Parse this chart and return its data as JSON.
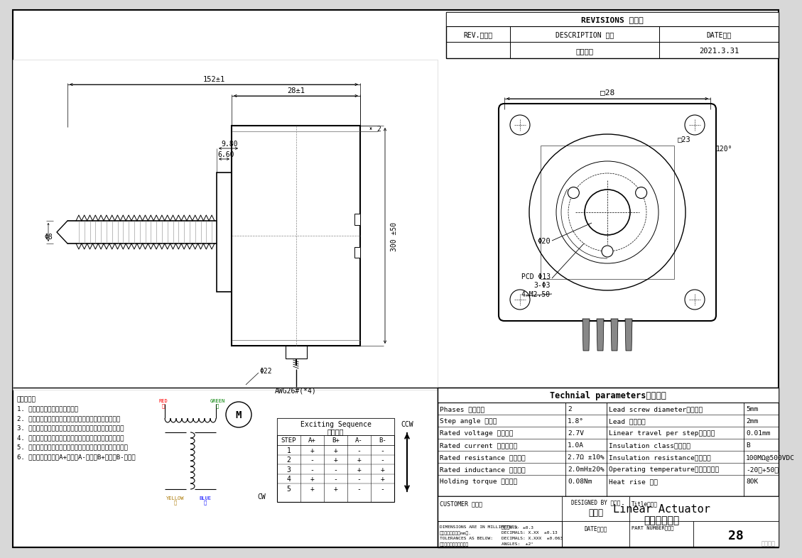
{
  "bg_color": "#d8d8d8",
  "title_box": {
    "revisions": "REVISIONS 修订栏",
    "rev_col": "REV.版本号",
    "desc_col": "DESCRIPTION 描述",
    "date_col": "DATE日期",
    "row1_desc": "首次发布",
    "row1_date": "2021.3.31"
  },
  "tech_params": {
    "title": "Technial parameters技术参数",
    "rows": [
      [
        "Phases 电机相数",
        "2",
        "Lead screw diameter丝杆直径",
        "5mm"
      ],
      [
        "Step angle 步距角",
        "1.8°",
        "Lead 螺纹导程",
        "2mm"
      ],
      [
        "Rated voltage 额定电压",
        "2.7V",
        "Linear travel per step整步步长",
        "0.01mm"
      ],
      [
        "Rated current 额定相电流",
        "1.0A",
        "Insulation class绝缘等级",
        "B"
      ],
      [
        "Rated resistance 额定电阻",
        "2.7Ω ±10%",
        "Insulation resistance绝缘电阻",
        "100MΩ@500VDC"
      ],
      [
        "Rated inductance 额定电感",
        "2.0mH±20%",
        "Operating temperature工作环境温度",
        "-20℃+50℃"
      ],
      [
        "Holding torque 保持力矩",
        "0.08Nm",
        "Heat rise 温升",
        "80K"
      ]
    ]
  },
  "notes": [
    "注意事项：",
    "1. 电机螺杆不得承受径向负载。",
    "2. 电机螺杆不能夹紧或者受到硬物挤压，以免损坏螺牙。",
    "3. 电机螺杆已经涂覆专用油脂，如需再加油请与厂家联系。",
    "4. 使用期间有任何问题请与厂家联系，请勿私自拆解电机。",
    "5. 电机必须轻拿轻放，拿取时请拿电机本体，勿手持引出线。",
    "6. 电机接线顺序为：A+红线、A-绿线、B+黄线、B-蓝线。"
  ],
  "exciting_seq": {
    "title1": "Exciting Sequence",
    "title2": "励磁顺序",
    "headers": [
      "STEP",
      "A+",
      "B+",
      "A-",
      "B-"
    ],
    "rows": [
      [
        "1",
        "+",
        "+",
        "-",
        "-"
      ],
      [
        "2",
        "-",
        "+",
        "+",
        "-"
      ],
      [
        "3",
        "-",
        "-",
        "+",
        "+"
      ],
      [
        "4",
        "+",
        "-",
        "-",
        "+"
      ],
      [
        "5",
        "+",
        "+",
        "-",
        "-"
      ]
    ],
    "ccw_label": "CCW",
    "cw_label": "CW"
  },
  "title_block": {
    "customer": "CUSTOMER 客户：",
    "designed_by": "DESIGNED BY 设计：",
    "designer": "陈棉涛",
    "date_label": "DATE日期：",
    "title_label": "Title标题：",
    "title_main": "Linear Actuator",
    "title_sub": "线性步进电机",
    "part_num_label": "PART NUMBER型号：",
    "part_num": "28"
  },
  "dims": {
    "top_dim1": "152±1",
    "top_dim2": "28±1",
    "dim_980": "9.80",
    "dim_660": "6.60",
    "dim_2": "2",
    "dim_phi8": "Φ8",
    "dim_phi22": "Φ22",
    "dim_300": "300 ±50",
    "awg": "AWG26#(*4)",
    "right_28": "□28",
    "right_23": "□23",
    "right_phi20": "Φ20",
    "right_pcd": "PCD Φ13",
    "right_3phi3": "3-Φ3",
    "right_4m250": "4-M2.50",
    "right_120": "120°"
  }
}
